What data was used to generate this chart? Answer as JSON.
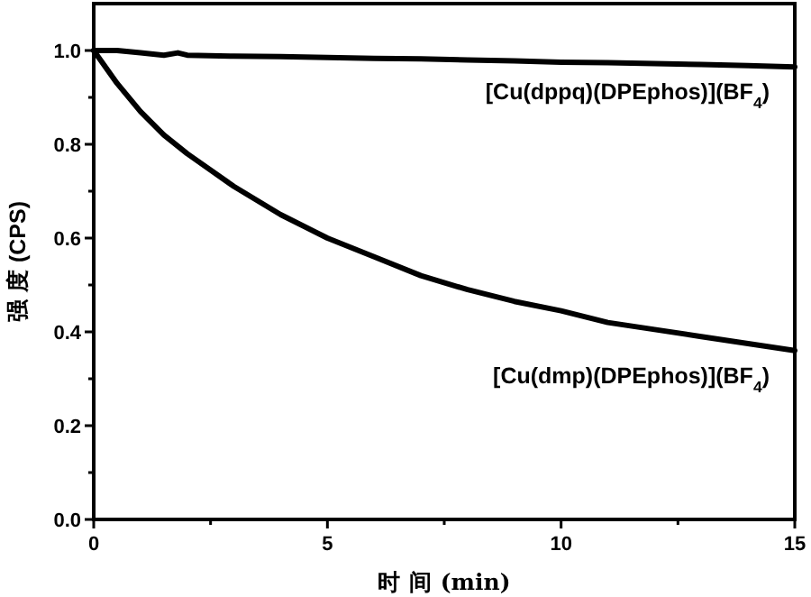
{
  "chart_data": {
    "type": "line",
    "xlabel": "时 间 (min)",
    "ylabel": "强 度 (CPS)",
    "xlim": [
      0,
      15
    ],
    "ylim": [
      0,
      1.1
    ],
    "xticks": [
      0,
      {
        "value": 2.5,
        "label": null
      },
      5,
      {
        "value": 7.5,
        "label": null
      },
      10,
      {
        "value": 12.5,
        "label": null
      },
      15
    ],
    "yticks": [
      "0.0",
      {
        "value": 0.1,
        "label": null
      },
      0.2,
      {
        "value": 0.3,
        "label": null
      },
      0.4,
      {
        "value": 0.5,
        "label": null
      },
      0.6,
      {
        "value": 0.7,
        "label": null
      },
      0.8,
      {
        "value": 0.9,
        "label": null
      },
      "1.0"
    ],
    "grid": false,
    "marker": "none",
    "line_style": "solid",
    "series": [
      {
        "name": "[Cu(dppq)(DPEphos)](BF$_{4}$)",
        "color": "#000000",
        "x": [
          0,
          0.5,
          1,
          1.5,
          1.8,
          2,
          3,
          4,
          5,
          6,
          7,
          8,
          9,
          10,
          11,
          12,
          13,
          14,
          15
        ],
        "values": [
          1.0,
          1.0,
          0.995,
          0.99,
          0.995,
          0.99,
          0.988,
          0.987,
          0.985,
          0.983,
          0.982,
          0.98,
          0.978,
          0.975,
          0.974,
          0.972,
          0.97,
          0.968,
          0.965
        ]
      },
      {
        "name": "[Cu(dmp)(DPEphos)](BF$_{4}$)",
        "color": "#000000",
        "x": [
          0,
          0.5,
          1,
          1.5,
          2,
          3,
          4,
          5,
          6,
          7,
          8,
          9,
          10,
          11,
          12,
          13,
          14,
          15
        ],
        "values": [
          1.0,
          0.93,
          0.87,
          0.82,
          0.78,
          0.71,
          0.65,
          0.6,
          0.56,
          0.52,
          0.49,
          0.465,
          0.445,
          0.42,
          0.405,
          0.39,
          0.375,
          0.36
        ]
      }
    ]
  }
}
